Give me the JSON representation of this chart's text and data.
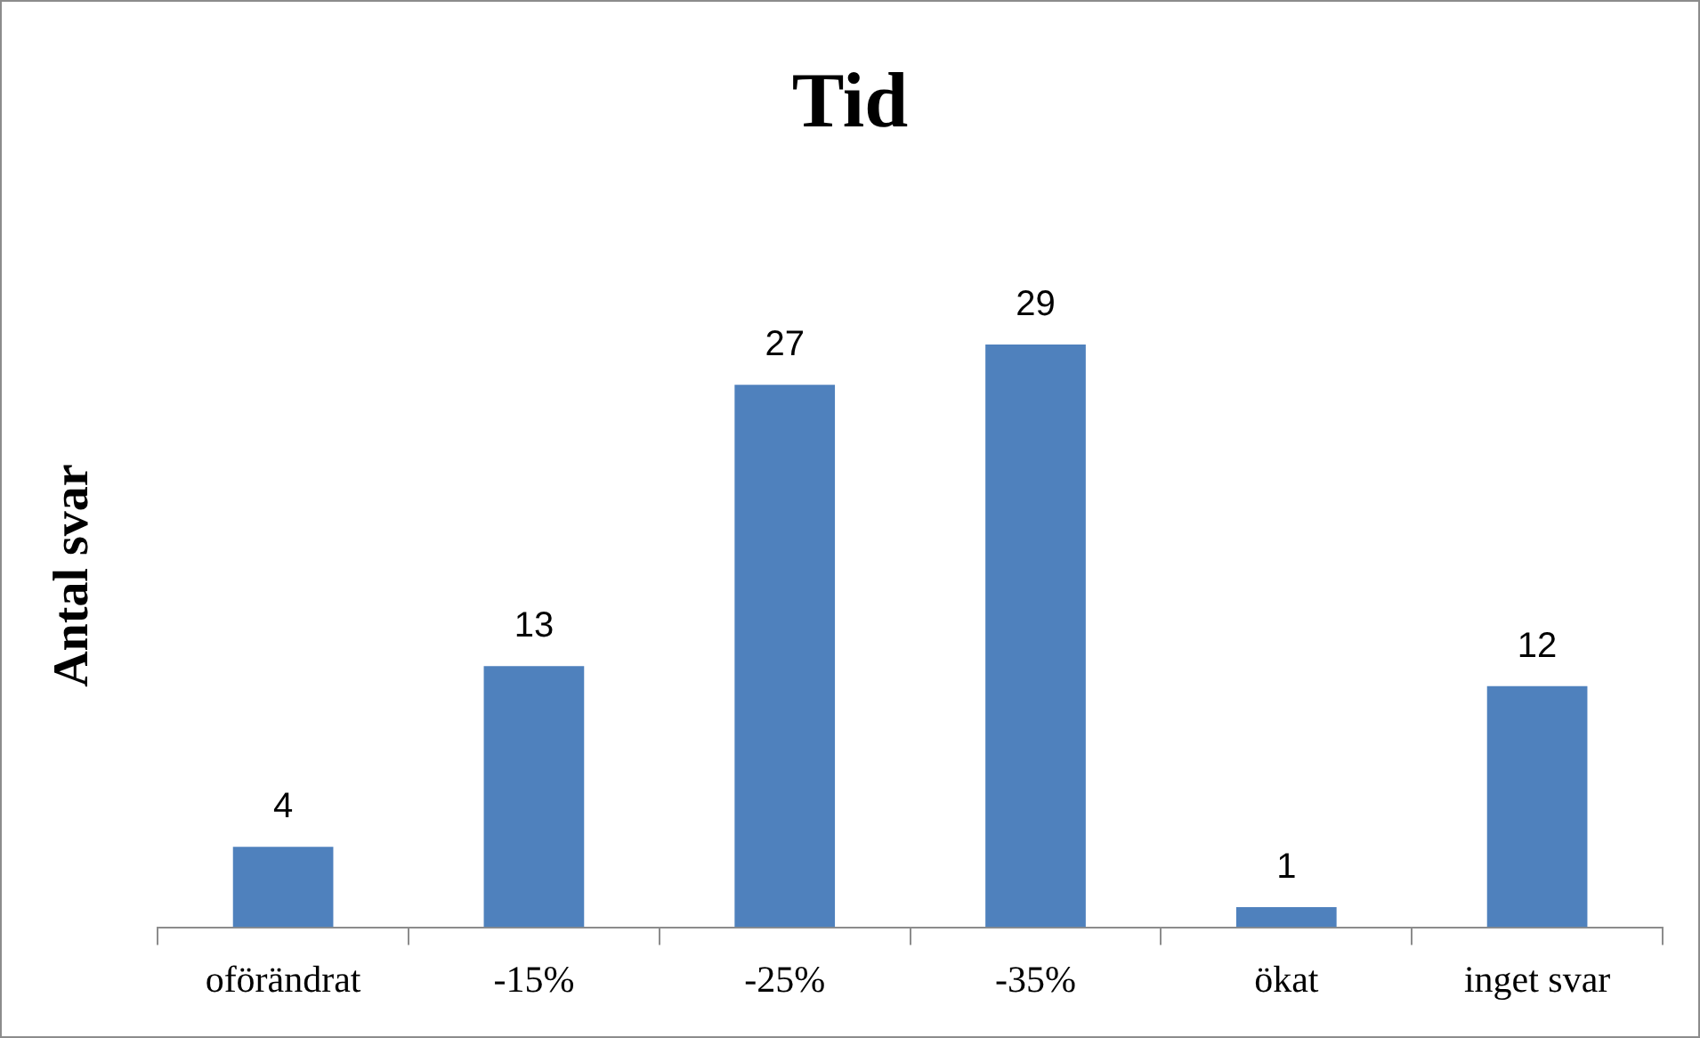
{
  "chart_data": {
    "type": "bar",
    "title": "Tid",
    "ylabel": "Antal svar",
    "categories": [
      "oförändrat",
      "-15%",
      "-25%",
      "-35%",
      "ökat",
      "inget svar"
    ],
    "values": [
      4,
      13,
      27,
      29,
      1,
      12
    ],
    "color": "#4f81bd",
    "data_labels": true,
    "grid": false,
    "legend": false
  }
}
